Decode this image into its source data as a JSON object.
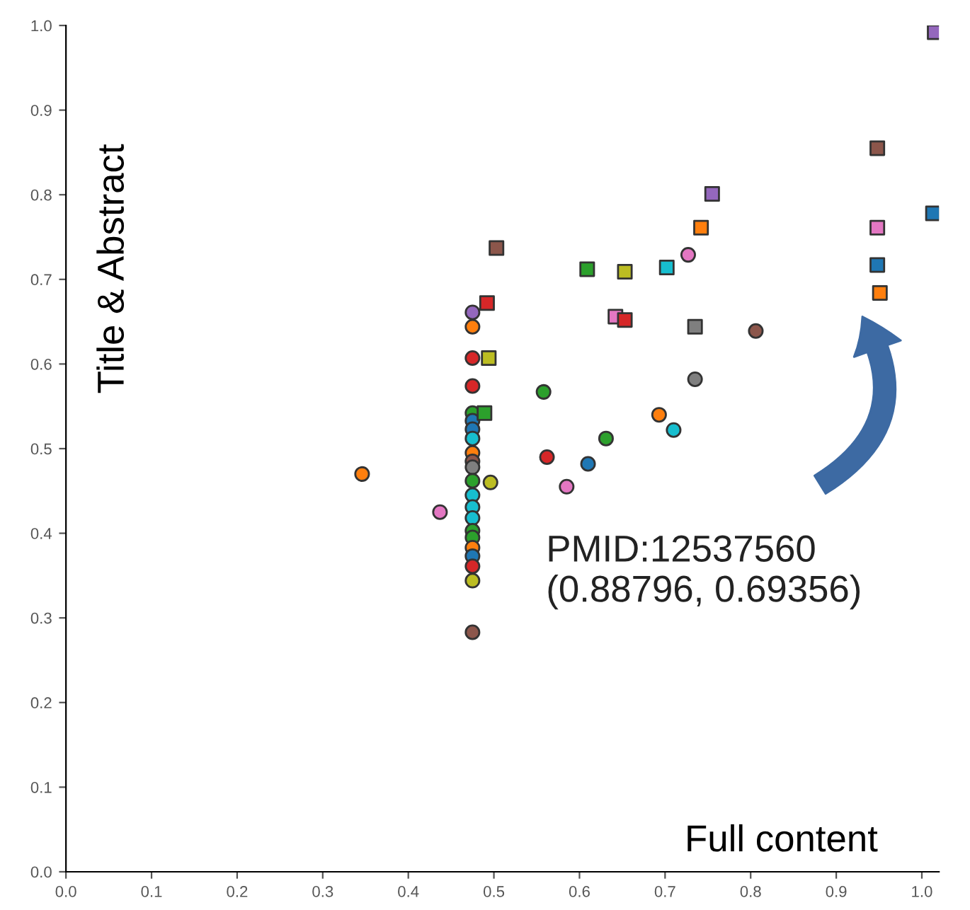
{
  "chart_data": {
    "type": "scatter",
    "xlabel": "Full content",
    "ylabel": "Title & Abstract",
    "xlim": [
      0,
      1.02
    ],
    "ylim": [
      0,
      1.0
    ],
    "xticks": [
      {
        "value": 0,
        "label": "0.0"
      },
      0.1,
      0.2,
      0.3,
      0.4,
      0.5,
      0.6,
      0.7,
      0.8,
      0.9,
      {
        "value": 1,
        "label": "1.0"
      }
    ],
    "yticks": [
      {
        "value": 0,
        "label": "0.0"
      },
      0.1,
      0.2,
      0.3,
      0.4,
      0.5,
      0.6,
      0.7,
      0.8,
      0.9,
      {
        "value": 1,
        "label": "1.0"
      }
    ],
    "grid": false,
    "legend": false,
    "annotations": [
      "PMID:12537560\n(0.88796, 0.69356)"
    ],
    "series": [
      {
        "marker": "circle",
        "x": [
          0.475,
          0.475,
          0.475,
          0.475,
          0.475,
          0.475,
          0.475,
          0.475,
          0.475,
          0.475,
          0.475,
          0.475,
          0.496,
          0.475,
          0.475,
          0.475,
          0.475,
          0.475,
          0.475,
          0.475,
          0.475,
          0.475,
          0.475,
          0.346,
          0.437,
          0.558,
          0.562,
          0.585,
          0.61,
          0.631,
          0.693,
          0.71,
          0.735,
          0.806,
          0.727
        ],
        "values": [
          0.661,
          0.644,
          0.607,
          0.574,
          0.542,
          0.533,
          0.523,
          0.512,
          0.495,
          0.485,
          0.478,
          0.462,
          0.46,
          0.445,
          0.431,
          0.418,
          0.403,
          0.395,
          0.383,
          0.373,
          0.361,
          0.344,
          0.283,
          0.47,
          0.425,
          0.567,
          0.49,
          0.455,
          0.482,
          0.512,
          0.54,
          0.522,
          0.582,
          0.639,
          0.729
        ],
        "colors": [
          "#9467bd",
          "#ff7f0e",
          "#d62728",
          "#d62728",
          "#2ca02c",
          "#1f77b4",
          "#1f77b4",
          "#17becf",
          "#ff7f0e",
          "#8c564b",
          "#7f7f7f",
          "#2ca02c",
          "#bcbd22",
          "#17becf",
          "#17becf",
          "#17becf",
          "#2ca02c",
          "#2ca02c",
          "#ff7f0e",
          "#1f77b4",
          "#d62728",
          "#bcbd22",
          "#8c564b",
          "#ff7f0e",
          "#e377c2",
          "#2ca02c",
          "#d62728",
          "#e377c2",
          "#1f77b4",
          "#2ca02c",
          "#ff7f0e",
          "#17becf",
          "#7f7f7f",
          "#8c564b",
          "#e377c2"
        ]
      },
      {
        "marker": "square",
        "x": [
          1.015,
          0.948,
          1.013,
          0.948,
          0.948,
          0.951,
          0.755,
          0.742,
          0.702,
          0.653,
          0.609,
          0.642,
          0.653,
          0.735,
          0.503,
          0.492,
          0.494,
          0.489
        ],
        "values": [
          0.992,
          0.855,
          0.778,
          0.761,
          0.717,
          0.684,
          0.801,
          0.761,
          0.714,
          0.709,
          0.712,
          0.656,
          0.652,
          0.644,
          0.737,
          0.672,
          0.607,
          0.542
        ],
        "colors": [
          "#9467bd",
          "#8c564b",
          "#1f77b4",
          "#e377c2",
          "#1f77b4",
          "#ff7f0e",
          "#9467bd",
          "#ff7f0e",
          "#17becf",
          "#bcbd22",
          "#2ca02c",
          "#e377c2",
          "#d62728",
          "#7f7f7f",
          "#8c564b",
          "#d62728",
          "#bcbd22",
          "#2ca02c"
        ]
      }
    ]
  }
}
